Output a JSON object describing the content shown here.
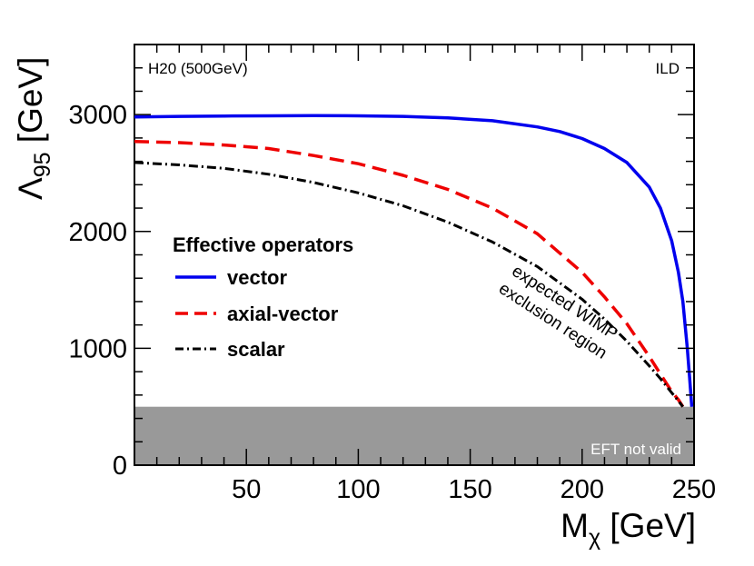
{
  "chart_data": {
    "type": "line",
    "xlabel": "M",
    "xlabel_sub": "χ",
    "xlabel_unit": " [GeV]",
    "ylabel": "Λ",
    "ylabel_sub": "95",
    "ylabel_unit": " [GeV]",
    "xlim": [
      0,
      250
    ],
    "ylim": [
      0,
      3600
    ],
    "xticks": [
      50,
      100,
      150,
      200,
      250
    ],
    "yticks": [
      0,
      1000,
      2000,
      3000
    ],
    "top_left_label": "H20 (500GeV)",
    "top_right_label": "ILD",
    "legend_title": "Effective operators",
    "legend_position": "center-left",
    "shaded_band": {
      "y_from": 0,
      "y_to": 500,
      "label": "EFT not valid",
      "color": "#999999"
    },
    "region_annotation": [
      "expected WIMP",
      "exclusion region"
    ],
    "series": [
      {
        "name": "vector",
        "style": "solid",
        "color": "#0000ee",
        "x": [
          0,
          20,
          40,
          60,
          80,
          100,
          120,
          140,
          160,
          180,
          190,
          200,
          210,
          220,
          230,
          235,
          240,
          243,
          245,
          247,
          248,
          249
        ],
        "y": [
          2980,
          2985,
          2988,
          2990,
          2992,
          2990,
          2985,
          2972,
          2948,
          2895,
          2855,
          2795,
          2710,
          2590,
          2380,
          2200,
          1920,
          1650,
          1400,
          1000,
          750,
          500
        ]
      },
      {
        "name": "axial-vector",
        "style": "dashed",
        "color": "#ee0000",
        "x": [
          0,
          20,
          40,
          60,
          80,
          100,
          120,
          140,
          160,
          180,
          200,
          210,
          220,
          230,
          235,
          240,
          243,
          245
        ],
        "y": [
          2770,
          2760,
          2740,
          2710,
          2650,
          2580,
          2480,
          2360,
          2200,
          1980,
          1650,
          1440,
          1210,
          930,
          780,
          630,
          560,
          500
        ]
      },
      {
        "name": "scalar",
        "style": "dash-dot",
        "color": "#000000",
        "x": [
          0,
          20,
          40,
          60,
          80,
          100,
          120,
          140,
          160,
          180,
          200,
          210,
          220,
          230,
          235,
          240,
          243,
          245
        ],
        "y": [
          2590,
          2570,
          2540,
          2490,
          2420,
          2330,
          2220,
          2080,
          1910,
          1700,
          1420,
          1250,
          1060,
          850,
          740,
          620,
          550,
          500
        ]
      }
    ]
  }
}
